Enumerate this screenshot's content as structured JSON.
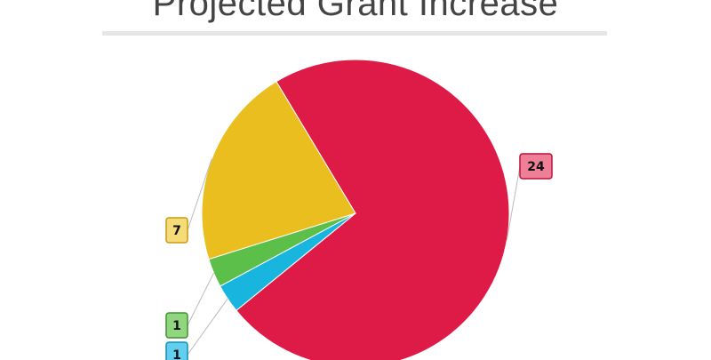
{
  "chart_data": {
    "type": "pie",
    "title": "Projected Grant Increase",
    "categories": [
      "",
      "",
      "",
      ""
    ],
    "values": [
      24,
      1,
      1,
      7
    ],
    "colors": [
      "#de1a47",
      "#18b6df",
      "#5bbf49",
      "#ebbe1f"
    ],
    "labels": [
      "24",
      "1",
      "1",
      "7"
    ],
    "legend": "none"
  }
}
